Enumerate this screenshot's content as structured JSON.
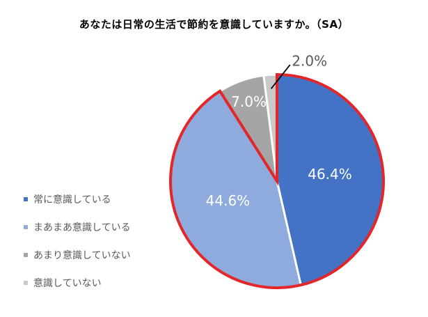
{
  "chart_data": {
    "type": "pie",
    "title": "あなたは日常の生活で節約を意識していますか。（SA）",
    "categories": [
      "常に意識している",
      "まあまあ意識している",
      "あまり意識していない",
      "意識していない"
    ],
    "values": [
      46.4,
      44.6,
      7.0,
      2.0
    ],
    "data_labels": [
      "46.4%",
      "44.6%",
      "7.0%",
      "2.0%"
    ],
    "colors": [
      "#4472C4",
      "#8FAADC",
      "#A5A5A5",
      "#C9C9C9"
    ],
    "highlight": {
      "color": "#E3262A",
      "slices": [
        0,
        1
      ]
    },
    "legend_position": "left"
  }
}
